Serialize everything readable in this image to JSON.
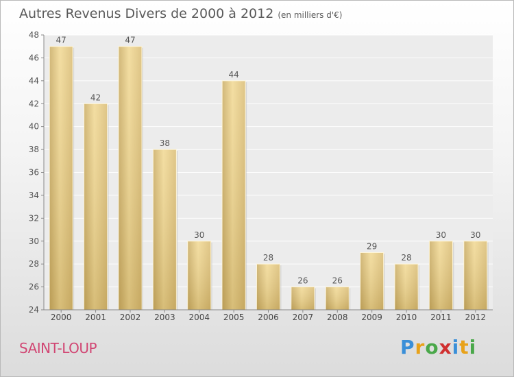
{
  "title": "Autres Revenus Divers de 2000 à 2012",
  "unit": "(en milliers d'€)",
  "commune": "SAINT-LOUP",
  "logo": {
    "letters": [
      "P",
      "r",
      "o",
      "x",
      "i",
      "t",
      "i"
    ],
    "colors": [
      "#3a8fd8",
      "#e8a21a",
      "#4aa84a",
      "#d03030",
      "#3a8fd8",
      "#e8a21a",
      "#4aa84a"
    ]
  },
  "chart_data": {
    "type": "bar",
    "categories": [
      "2000",
      "2001",
      "2002",
      "2003",
      "2004",
      "2005",
      "2006",
      "2007",
      "2008",
      "2009",
      "2010",
      "2011",
      "2012"
    ],
    "values": [
      47,
      42,
      47,
      38,
      30,
      44,
      28,
      26,
      26,
      29,
      28,
      30,
      30
    ],
    "ylim": [
      24,
      48
    ],
    "yticks": [
      24,
      26,
      28,
      30,
      32,
      34,
      36,
      38,
      40,
      42,
      44,
      46,
      48
    ],
    "grid": true,
    "bar_color": "#e8cf8a"
  }
}
